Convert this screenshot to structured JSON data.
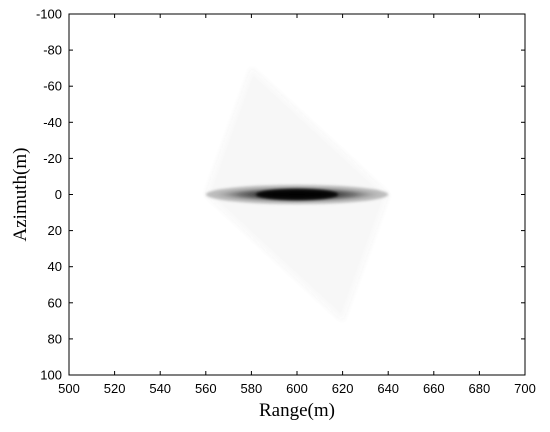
{
  "chart_data": {
    "type": "heatmap",
    "title": "",
    "xlabel": "Range(m)",
    "ylabel": "Azimuth(m)",
    "xlim": [
      500,
      700
    ],
    "ylim": [
      -100,
      100
    ],
    "y_direction": "reversed (-100 at top)",
    "xticks": [
      500,
      520,
      540,
      560,
      580,
      600,
      620,
      640,
      660,
      680,
      700
    ],
    "yticks": [
      -100,
      -80,
      -60,
      -40,
      -20,
      0,
      20,
      40,
      60,
      80,
      100
    ],
    "colormap": "grayscale (white = low, black = high)",
    "grid": false,
    "legend": "none",
    "features": {
      "peak": {
        "x": 600,
        "y": 0,
        "intensity": 1.0
      },
      "mainlobe": {
        "x_range": [
          560,
          640
        ],
        "y_halfwidth": 2
      },
      "sidelobe_region": {
        "shape": "diamond",
        "corners": [
          [
            560,
            0
          ],
          [
            580,
            -70
          ],
          [
            640,
            0
          ],
          [
            620,
            70
          ]
        ],
        "intensity": 0.07,
        "stripe_period": 3
      }
    }
  }
}
